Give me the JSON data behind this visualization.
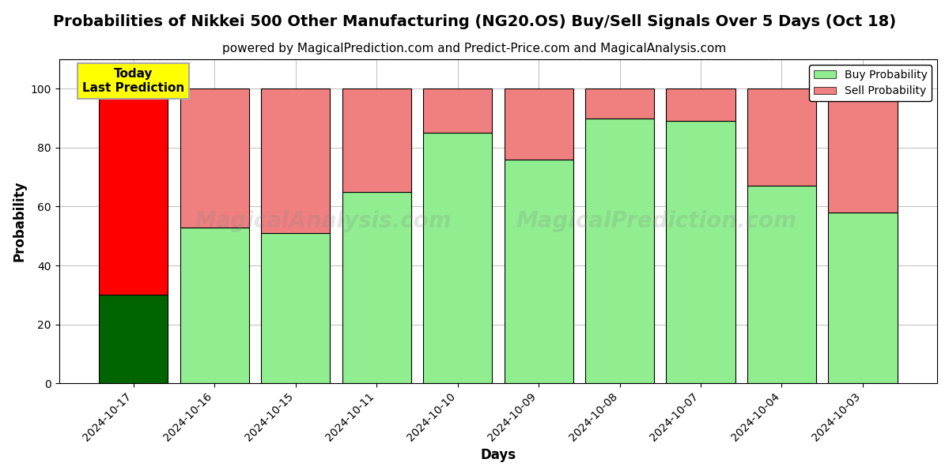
{
  "title": "Probabilities of Nikkei 500 Other Manufacturing (NG20.OS) Buy/Sell Signals Over 5 Days (Oct 18)",
  "subtitle": "powered by MagicalPrediction.com and Predict-Price.com and MagicalAnalysis.com",
  "xlabel": "Days",
  "ylabel": "Probability",
  "categories": [
    "2024-10-17",
    "2024-10-16",
    "2024-10-15",
    "2024-10-11",
    "2024-10-10",
    "2024-10-09",
    "2024-10-08",
    "2024-10-07",
    "2024-10-04",
    "2024-10-03"
  ],
  "buy_values": [
    30,
    53,
    51,
    65,
    85,
    76,
    90,
    89,
    67,
    58
  ],
  "sell_values": [
    70,
    47,
    49,
    35,
    15,
    24,
    10,
    11,
    33,
    42
  ],
  "today_buy_color": "#006400",
  "today_sell_color": "#ff0000",
  "buy_color": "#90EE90",
  "sell_color": "#F08080",
  "today_annotation_bg": "#ffff00",
  "today_annotation_text": "Today\nLast Prediction",
  "ylim": [
    0,
    110
  ],
  "dashed_line_y": 110,
  "watermark_lines": [
    "MagicalAnalysis.com",
    "MagicalPrediction.com"
  ],
  "legend_buy": "Buy Probability",
  "legend_sell": "Sell Probability",
  "title_fontsize": 14,
  "subtitle_fontsize": 11,
  "axis_label_fontsize": 12,
  "tick_fontsize": 10
}
